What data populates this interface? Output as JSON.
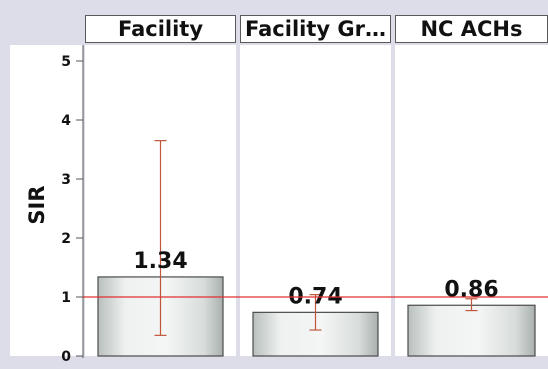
{
  "chart_data": {
    "type": "bar",
    "ylabel": "SIR",
    "ylim": [
      0,
      5.4
    ],
    "yticks": [
      0,
      1,
      2,
      3,
      4,
      5
    ],
    "reference_line": 1,
    "colors": {
      "page_bg": "#dcdde8",
      "panel_bg": "#ffffff",
      "panel_border": "#c9cada",
      "bar_fill": "#dde2e0",
      "bar_stroke": "#4a4a4a",
      "error_bar": "#c0563a",
      "reference_line": "#e03030",
      "text": "#111111"
    },
    "panels": [
      {
        "title": "Facility",
        "value": 1.34,
        "value_label": "1.34",
        "ci_low": 0.35,
        "ci_high": 3.65
      },
      {
        "title": "Facility Gr…",
        "value": 0.74,
        "value_label": "0.74",
        "ci_low": 0.44,
        "ci_high": 1.04
      },
      {
        "title": "NC ACHs",
        "value": 0.86,
        "value_label": "0.86",
        "ci_low": 0.77,
        "ci_high": 0.97
      }
    ]
  }
}
